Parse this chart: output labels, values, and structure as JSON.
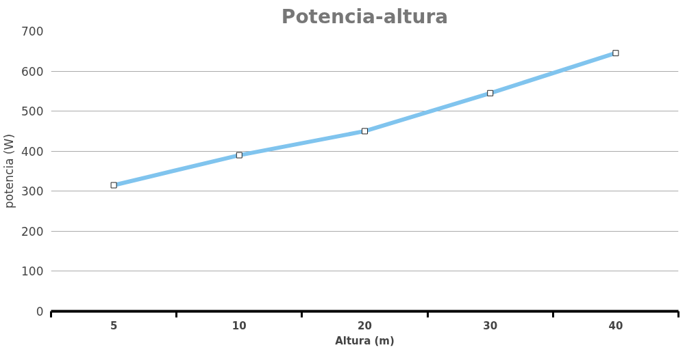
{
  "chart_data": {
    "type": "line",
    "title": "Potencia-altura",
    "xlabel": "Altura (m)",
    "ylabel": "potencia (W)",
    "categories": [
      "5",
      "10",
      "20",
      "30",
      "40"
    ],
    "series": [
      {
        "color": "#80c4ee",
        "values": [
          315,
          390,
          450,
          545,
          645
        ]
      }
    ],
    "ylim": [
      0,
      700
    ],
    "yticks": [
      0,
      100,
      200,
      300,
      400,
      500,
      600,
      700
    ],
    "grid": "y",
    "marker": "square"
  }
}
